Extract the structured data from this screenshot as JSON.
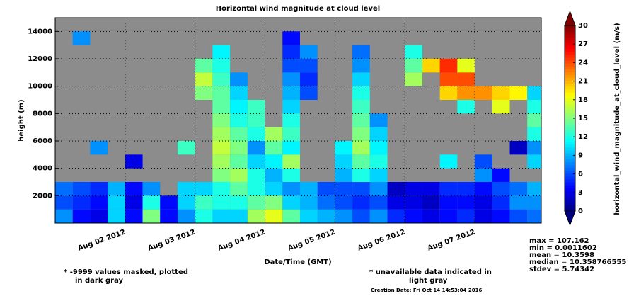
{
  "chart_data": {
    "type": "heatmap",
    "title": "Horizontal wind magnitude at cloud level",
    "x_label": "Date/Time (GMT)",
    "y_label": "height (m)",
    "x": [
      1.0,
      1.25,
      1.5,
      1.75,
      2.0,
      2.25,
      2.5,
      2.75,
      3.0,
      3.25,
      3.5,
      3.75,
      4.0,
      4.25,
      4.5,
      4.75,
      5.0,
      5.25,
      5.5,
      5.75,
      6.0,
      6.25,
      6.5,
      6.75,
      7.0,
      7.25,
      7.5,
      7.75
    ],
    "heights": [
      0,
      1000,
      2000,
      3000,
      4000,
      5000,
      6000,
      7000,
      8000,
      9000,
      10000,
      11000,
      12000,
      13000,
      14000
    ],
    "cell_width": 0.25,
    "cell_height": 1000,
    "values": [
      [
        8,
        6,
        7,
        null,
        null,
        null,
        null,
        null,
        null,
        null,
        null,
        null,
        null,
        null,
        null
      ],
      [
        4,
        5,
        6,
        null,
        null,
        null,
        null,
        null,
        null,
        null,
        null,
        null,
        null,
        8,
        null
      ],
      [
        3,
        4,
        5,
        null,
        null,
        8,
        null,
        null,
        null,
        null,
        null,
        null,
        null,
        null,
        null
      ],
      [
        10,
        10,
        9,
        null,
        null,
        null,
        null,
        null,
        null,
        null,
        null,
        null,
        null,
        null,
        null
      ],
      [
        4,
        3,
        4,
        null,
        3,
        null,
        null,
        null,
        null,
        null,
        null,
        null,
        null,
        null,
        null
      ],
      [
        15,
        12,
        8,
        null,
        null,
        null,
        null,
        null,
        null,
        null,
        null,
        null,
        null,
        null,
        null
      ],
      [
        4,
        4,
        null,
        null,
        null,
        null,
        null,
        null,
        null,
        null,
        null,
        null,
        null,
        null,
        null
      ],
      [
        8,
        10,
        10,
        null,
        null,
        13,
        null,
        null,
        null,
        null,
        null,
        null,
        null,
        null,
        null
      ],
      [
        12,
        13,
        10,
        null,
        null,
        null,
        null,
        null,
        null,
        15,
        17,
        14,
        null,
        null,
        null
      ],
      [
        10,
        12,
        12,
        15,
        16,
        17,
        16,
        15,
        14,
        14,
        13,
        12,
        11,
        null,
        null
      ],
      [
        10,
        12,
        14,
        16,
        14,
        15,
        14,
        12,
        11,
        10,
        8,
        null,
        null,
        null,
        null
      ],
      [
        16,
        14,
        12,
        12,
        10,
        8,
        12,
        13,
        13,
        null,
        null,
        null,
        null,
        null,
        null
      ],
      [
        18,
        15,
        10,
        9,
        11,
        14,
        16,
        null,
        null,
        null,
        null,
        null,
        null,
        null,
        null
      ],
      [
        14,
        10,
        8,
        12,
        16,
        11,
        13,
        12,
        10,
        9,
        8,
        6,
        5,
        4,
        null
      ],
      [
        10,
        9,
        9,
        null,
        null,
        null,
        null,
        null,
        null,
        6,
        5,
        6,
        8,
        null,
        null
      ],
      [
        9,
        7,
        6,
        null,
        null,
        null,
        null,
        null,
        null,
        null,
        null,
        null,
        null,
        null,
        null
      ],
      [
        8,
        6,
        6,
        9,
        10,
        11,
        null,
        null,
        null,
        null,
        null,
        null,
        null,
        null,
        null
      ],
      [
        6,
        5,
        6,
        12,
        14,
        16,
        15,
        14,
        13,
        12,
        10,
        8,
        7,
        null,
        null
      ],
      [
        8,
        6,
        8,
        10,
        12,
        11,
        10,
        8,
        null,
        null,
        null,
        null,
        null,
        null,
        null
      ],
      [
        5,
        3,
        2,
        null,
        null,
        null,
        null,
        null,
        null,
        null,
        null,
        null,
        null,
        null,
        null
      ],
      [
        4,
        3,
        3,
        null,
        null,
        null,
        null,
        null,
        null,
        null,
        16,
        14,
        12,
        null,
        null
      ],
      [
        3,
        2,
        3,
        null,
        null,
        null,
        null,
        null,
        null,
        null,
        null,
        20,
        null,
        null,
        null
      ],
      [
        4,
        4,
        5,
        null,
        11,
        null,
        null,
        null,
        null,
        20,
        24,
        25,
        null,
        null,
        null
      ],
      [
        5,
        4,
        5,
        null,
        null,
        null,
        null,
        null,
        12,
        22,
        24,
        18,
        null,
        null,
        null
      ],
      [
        3,
        3,
        4,
        8,
        6,
        null,
        null,
        null,
        null,
        22,
        null,
        null,
        null,
        null,
        null
      ],
      [
        4,
        5,
        6,
        4,
        null,
        null,
        null,
        null,
        18,
        20,
        null,
        null,
        null,
        null,
        null
      ],
      [
        6,
        8,
        7,
        null,
        null,
        2,
        null,
        null,
        null,
        19,
        null,
        null,
        null,
        null,
        null
      ],
      [
        7,
        8,
        9,
        null,
        10,
        8,
        12,
        14,
        12,
        10,
        null,
        null,
        null,
        null,
        null
      ]
    ],
    "xlim": [
      1.0,
      7.95
    ],
    "xticks": [
      {
        "value": 2,
        "label": "Aug 02 2012"
      },
      {
        "value": 3,
        "label": "Aug 03 2012"
      },
      {
        "value": 4,
        "label": "Aug 04 2012"
      },
      {
        "value": 5,
        "label": "Aug 05 2012"
      },
      {
        "value": 6,
        "label": "Aug 06 2012"
      },
      {
        "value": 7,
        "label": "Aug 07 2012"
      }
    ],
    "ylim": [
      0,
      15000
    ],
    "yticks": [
      2000,
      4000,
      6000,
      8000,
      10000,
      12000,
      14000
    ],
    "grid": true,
    "colorbar": {
      "label": "horizontal_wind_magnitude_at_cloud_level (m/s)",
      "clim": [
        0,
        30
      ],
      "ticks": [
        0,
        3,
        6,
        9,
        12,
        15,
        18,
        21,
        24,
        27,
        30
      ],
      "colormap": "jet"
    },
    "notes": [
      [
        "* -9999 values masked, plotted",
        "in dark gray"
      ],
      [
        "* unavailable data indicated in",
        "light gray"
      ]
    ],
    "creation": "Creation Date: Fri Oct 14 14:53:04 2016",
    "stats": [
      "max = 107.162",
      "min = 0.0011602",
      "mean = 10.3598",
      "median = 10.358766555",
      "stdev = 5.74342"
    ]
  }
}
